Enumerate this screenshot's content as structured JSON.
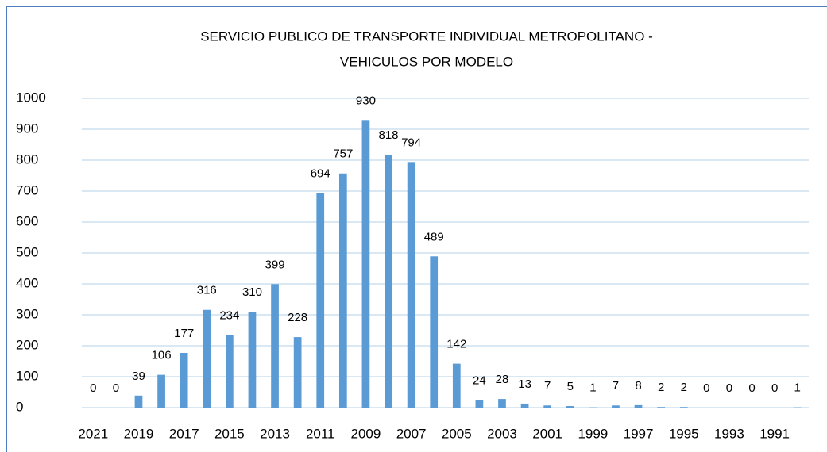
{
  "chart_data": {
    "type": "bar",
    "title": [
      "SERVICIO PUBLICO DE TRANSPORTE INDIVIDUAL METROPOLITANO -",
      "VEHICULOS POR MODELO"
    ],
    "categories": [
      "2021",
      null,
      "2019",
      null,
      "2017",
      null,
      "2015",
      null,
      "2013",
      null,
      "2011",
      null,
      "2009",
      null,
      "2007",
      null,
      "2005",
      null,
      "2003",
      null,
      "2001",
      null,
      "1999",
      null,
      "1997",
      null,
      "1995",
      null,
      "1993",
      null,
      "1991",
      null
    ],
    "values": [
      0,
      0,
      39,
      106,
      177,
      316,
      234,
      310,
      399,
      228,
      694,
      757,
      930,
      818,
      794,
      489,
      142,
      24,
      28,
      13,
      7,
      5,
      1,
      7,
      8,
      2,
      2,
      0,
      0,
      0,
      0,
      1
    ],
    "color": "#5b9bd5",
    "ylim": [
      0,
      1000
    ],
    "yticks": [
      0,
      100,
      200,
      300,
      400,
      500,
      600,
      700,
      800,
      900,
      1000
    ],
    "grid": true
  }
}
